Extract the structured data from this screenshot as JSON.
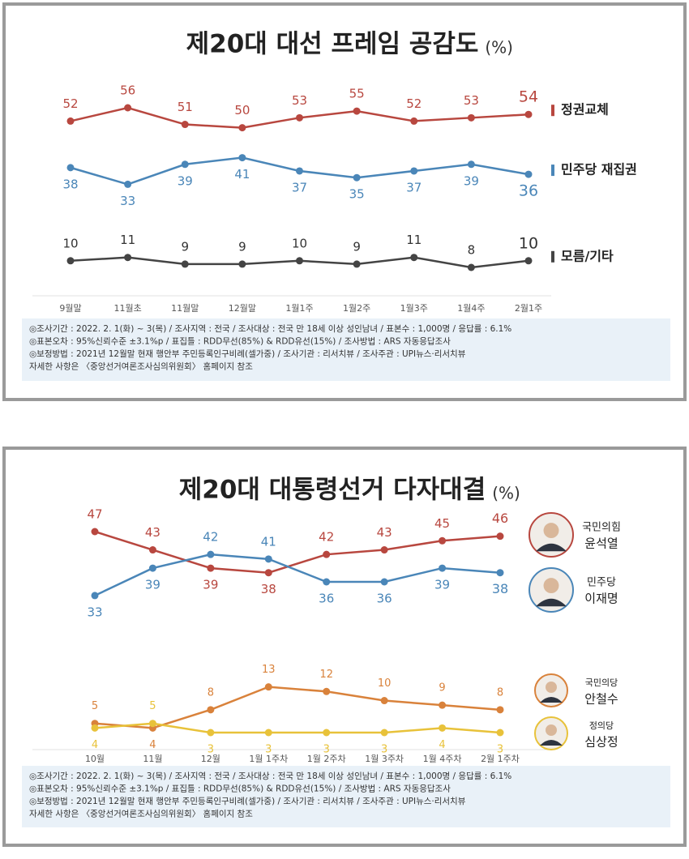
{
  "chart_data": [
    {
      "type": "line",
      "title": "제20대 대선 프레임 공감도",
      "unit": "(%)",
      "categories": [
        "9월말",
        "11월초",
        "11월말",
        "12월말",
        "1월1주",
        "1월2주",
        "1월3주",
        "1월4주",
        "2월1주"
      ],
      "series": [
        {
          "name": "정권교체",
          "color": "#b8473f",
          "values": [
            52,
            56,
            51,
            50,
            53,
            55,
            52,
            53,
            54
          ]
        },
        {
          "name": "민주당 재집권",
          "color": "#4a86b8",
          "values": [
            38,
            33,
            39,
            41,
            37,
            35,
            37,
            39,
            36
          ]
        },
        {
          "name": "모름/기타",
          "color": "#444444",
          "values": [
            10,
            11,
            9,
            9,
            10,
            9,
            11,
            8,
            10
          ]
        }
      ],
      "notes": [
        "◎조사기간 : 2022. 2. 1(화) ~ 3(목) / 조사지역 : 전국 / 조사대상 : 전국 만 18세 이상 성인남녀 / 표본수 : 1,000명 / 응답률 : 6.1%",
        "◎표본오차 : 95%신뢰수준 ±3.1%p / 표집틀 : RDD무선(85%) & RDD유선(15%) / 조사방법 : ARS 자동응답조사",
        "◎보정방법 : 2021년 12월말 현재 행안부 주민등록인구비례(셀가중) / 조사기관 : 리서치뷰 / 조사주관 : UPI뉴스·리서치뷰",
        "자세한 사항은 〈중앙선거여론조사심의위원회〉 홈페이지 참조"
      ]
    },
    {
      "type": "line",
      "title": "제20대 대통령선거 다자대결",
      "unit": "(%)",
      "categories": [
        "10월",
        "11월",
        "12월",
        "1월 1주차",
        "1월 2주차",
        "1월 3주차",
        "1월 4주차",
        "2월 1주차"
      ],
      "series": [
        {
          "name": "윤석열",
          "party": "국민의힘",
          "color": "#b8473f",
          "values": [
            47,
            43,
            39,
            38,
            42,
            43,
            45,
            46
          ]
        },
        {
          "name": "이재명",
          "party": "민주당",
          "color": "#4a86b8",
          "values": [
            33,
            39,
            42,
            41,
            36,
            36,
            39,
            38
          ]
        },
        {
          "name": "안철수",
          "party": "국민의당",
          "color": "#d9823b",
          "values": [
            5,
            4,
            8,
            13,
            12,
            10,
            9,
            8
          ]
        },
        {
          "name": "심상정",
          "party": "정의당",
          "color": "#e8c23a",
          "values": [
            4,
            5,
            3,
            3,
            3,
            3,
            4,
            3
          ]
        }
      ],
      "notes": [
        "◎조사기간 : 2022. 2. 1(화) ~ 3(목) / 조사지역 : 전국 / 조사대상 : 전국 만 18세 이상 성인남녀 / 표본수 : 1,000명 / 응답률 : 6.1%",
        "◎표본오차 : 95%신뢰수준 ±3.1%p / 표집틀 : RDD무선(85%) & RDD유선(15%) / 조사방법 : ARS 자동응답조사",
        "◎보정방법 : 2021년 12월말 현재 행안부 주민등록인구비례(셀가중) / 조사기관 : 리서치뷰 / 조사주관 : UPI뉴스·리서치뷰",
        "자세한 사항은 〈중앙선거여론조사심의위원회〉 홈페이지 참조"
      ]
    }
  ]
}
